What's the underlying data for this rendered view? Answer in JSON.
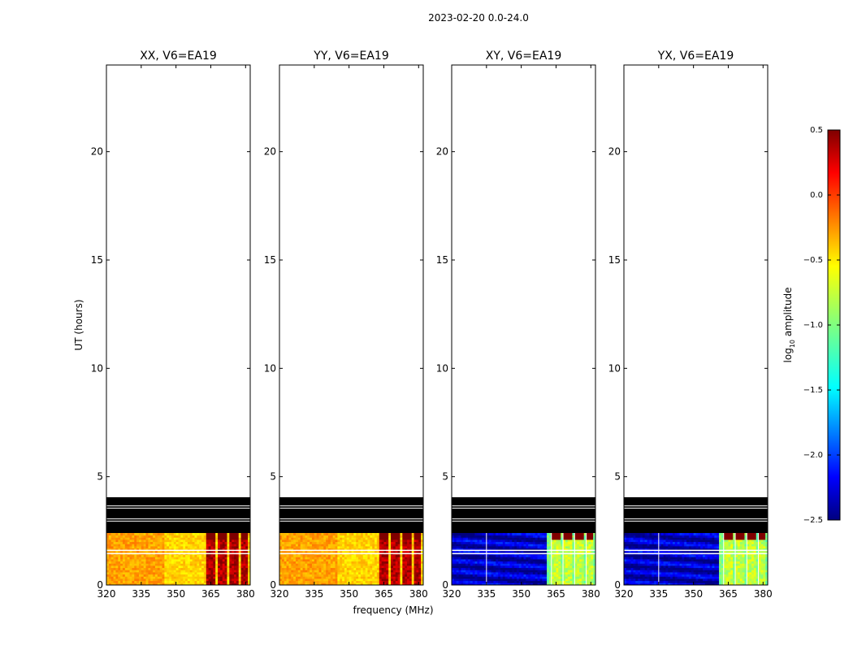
{
  "figure": {
    "suptitle": "2023-02-20 0.0-24.0",
    "shared_xlabel": "frequency (MHz)",
    "shared_ylabel": "UT (hours)"
  },
  "colorbar": {
    "label_main": "log",
    "label_sub": "10",
    "label_tail": " amplitude",
    "min": -2.5,
    "max": 0.5,
    "tick_labels": [
      "0.5",
      "0.0",
      "−0.5",
      "−1.0",
      "−1.5",
      "−2.0",
      "−2.5"
    ],
    "tick_values": [
      0.5,
      0.0,
      -0.5,
      -1.0,
      -1.5,
      -2.0,
      -2.5
    ],
    "colormap": "jet"
  },
  "chart_data": [
    {
      "type": "heatmap",
      "title": "XX, V6=EA19",
      "xlim": [
        320,
        382
      ],
      "ylim": [
        0,
        24
      ],
      "xticks": [
        320,
        335,
        350,
        365,
        380
      ],
      "xtick_labels": [
        "320",
        "335",
        "350",
        "365",
        "380"
      ],
      "yticks": [
        0,
        5,
        10,
        15,
        20
      ],
      "ytick_labels": [
        "0",
        "5",
        "10",
        "15",
        "20"
      ],
      "data_time_range": [
        0,
        2.4
      ],
      "flagged_time_range": [
        2.4,
        4.05
      ],
      "flagged_lines_hours": [
        2.95,
        3.05,
        3.55,
        3.65
      ],
      "data_gap_lines_hours": [
        1.45,
        1.6
      ],
      "rfi_channels_mhz": [
        [
          363,
          367
        ],
        [
          368,
          372
        ],
        [
          373,
          377
        ],
        [
          378,
          381
        ]
      ],
      "baseline_level": -0.45,
      "rfi_level": 0.35
    },
    {
      "type": "heatmap",
      "title": "YY, V6=EA19",
      "xlim": [
        320,
        382
      ],
      "ylim": [
        0,
        24
      ],
      "xticks": [
        320,
        335,
        350,
        365,
        380
      ],
      "xtick_labels": [
        "320",
        "335",
        "350",
        "365",
        "380"
      ],
      "yticks": [
        0,
        5,
        10,
        15,
        20
      ],
      "ytick_labels": [
        "0",
        "5",
        "10",
        "15",
        "20"
      ],
      "data_time_range": [
        0,
        2.4
      ],
      "flagged_time_range": [
        2.4,
        4.05
      ],
      "flagged_lines_hours": [
        2.95,
        3.05,
        3.55,
        3.65
      ],
      "data_gap_lines_hours": [
        1.45,
        1.6
      ],
      "rfi_channels_mhz": [
        [
          363,
          367
        ],
        [
          368,
          372
        ],
        [
          373,
          377
        ],
        [
          378,
          381
        ]
      ],
      "baseline_level": -0.45,
      "rfi_level": 0.35
    },
    {
      "type": "heatmap",
      "title": "XY, V6=EA19",
      "xlim": [
        320,
        382
      ],
      "ylim": [
        0,
        24
      ],
      "xticks": [
        320,
        335,
        350,
        365,
        380
      ],
      "xtick_labels": [
        "320",
        "335",
        "350",
        "365",
        "380"
      ],
      "yticks": [
        0,
        5,
        10,
        15,
        20
      ],
      "ytick_labels": [
        "0",
        "5",
        "10",
        "15",
        "20"
      ],
      "data_time_range": [
        0,
        2.4
      ],
      "flagged_time_range": [
        2.4,
        4.05
      ],
      "flagged_lines_hours": [
        2.95,
        3.05,
        3.55,
        3.65
      ],
      "data_gap_lines_hours": [
        1.45,
        1.6
      ],
      "rfi_channels_mhz": [
        [
          363,
          367
        ],
        [
          368,
          372
        ],
        [
          373,
          377
        ],
        [
          378,
          381
        ]
      ],
      "baseline_level": -2.3,
      "rfi_level": -0.8
    },
    {
      "type": "heatmap",
      "title": "YX, V6=EA19",
      "xlim": [
        320,
        382
      ],
      "ylim": [
        0,
        24
      ],
      "xticks": [
        320,
        335,
        350,
        365,
        380
      ],
      "xtick_labels": [
        "320",
        "335",
        "350",
        "365",
        "380"
      ],
      "yticks": [
        0,
        5,
        10,
        15,
        20
      ],
      "ytick_labels": [
        "0",
        "5",
        "10",
        "15",
        "20"
      ],
      "data_time_range": [
        0,
        2.4
      ],
      "flagged_time_range": [
        2.4,
        4.05
      ],
      "flagged_lines_hours": [
        2.95,
        3.05,
        3.55,
        3.65
      ],
      "data_gap_lines_hours": [
        1.45,
        1.6
      ],
      "rfi_channels_mhz": [
        [
          363,
          367
        ],
        [
          368,
          372
        ],
        [
          373,
          377
        ],
        [
          378,
          381
        ]
      ],
      "baseline_level": -2.3,
      "rfi_level": -0.8
    }
  ]
}
